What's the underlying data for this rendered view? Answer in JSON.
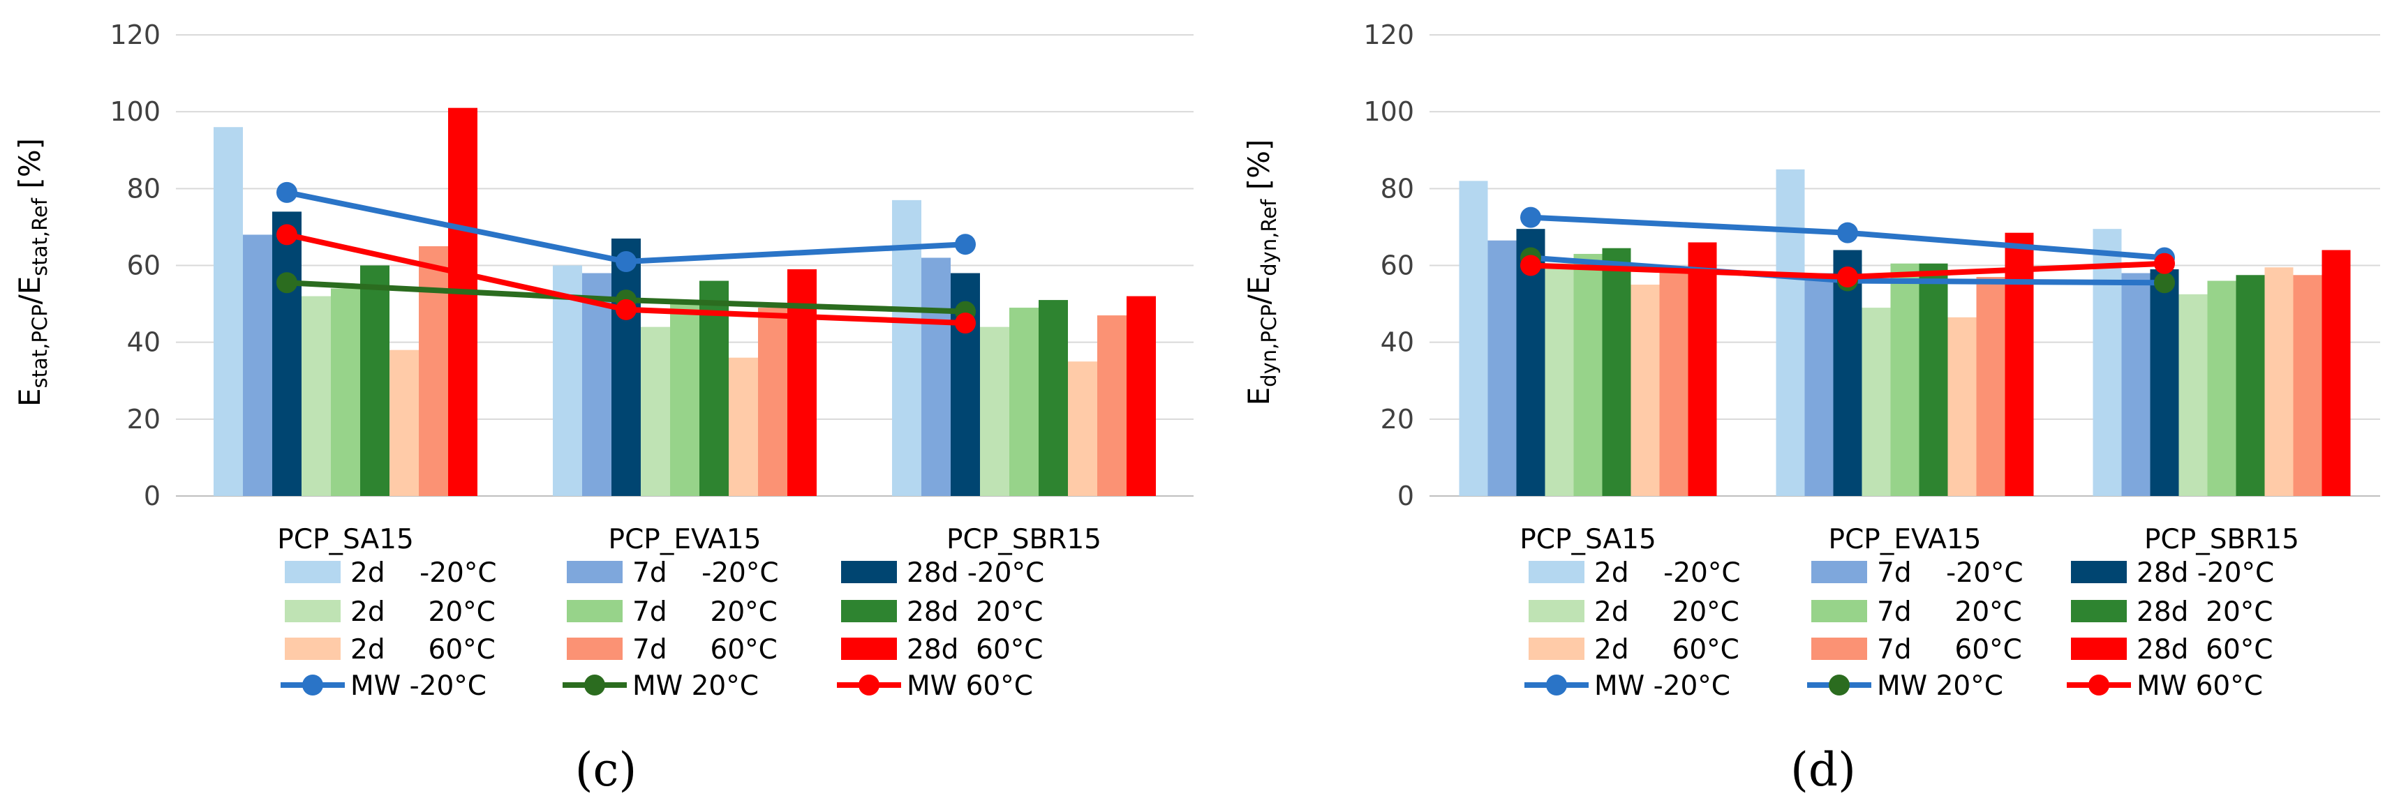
{
  "chart_data": [
    {
      "type": "bar",
      "panel_label": "(c)",
      "ylabel_main": "E",
      "ylabel_sub1": "stat,PCP",
      "ylabel_sep": "/E",
      "ylabel_sub2": "stat,Ref",
      "ylabel_unit": " [%]",
      "ylim": [
        0,
        120
      ],
      "yticks": [
        "0",
        "20",
        "40",
        "60",
        "80",
        "100",
        "120"
      ],
      "categories": [
        "PCP_SA15",
        "PCP_EVA15",
        "PCP_SBR15"
      ],
      "series": [
        {
          "name": "2d    -20°C",
          "color": "#b4d7f0",
          "values": [
            96,
            60,
            77
          ]
        },
        {
          "name": "7d    -20°C",
          "color": "#7ea7dc",
          "values": [
            68,
            58,
            62
          ]
        },
        {
          "name": "28d -20°C",
          "color": "#004571",
          "values": [
            74,
            67,
            58
          ]
        },
        {
          "name": "2d     20°C",
          "color": "#bfe3b4",
          "values": [
            52,
            44,
            44
          ]
        },
        {
          "name": "7d     20°C",
          "color": "#97d38a",
          "values": [
            54,
            50,
            49
          ]
        },
        {
          "name": "28d  20°C",
          "color": "#2e8430",
          "values": [
            60,
            56,
            51
          ]
        },
        {
          "name": "2d     60°C",
          "color": "#ffcba8",
          "values": [
            38,
            36,
            35
          ]
        },
        {
          "name": "7d     60°C",
          "color": "#fb9274",
          "values": [
            65,
            49,
            47
          ]
        },
        {
          "name": "28d  60°C",
          "color": "#ff0000",
          "values": [
            101,
            59,
            52
          ]
        }
      ],
      "lines": [
        {
          "name": "MW -20°C",
          "color": "#2a74c7",
          "values": [
            79,
            61,
            65.5
          ]
        },
        {
          "name": "MW 20°C",
          "color": "#2b6c1f",
          "values": [
            55.5,
            51,
            48
          ]
        },
        {
          "name": "MW 60°C",
          "color": "#ff0000",
          "values": [
            68,
            48.5,
            45
          ]
        }
      ]
    },
    {
      "type": "bar",
      "panel_label": "(d)",
      "ylabel_main": "E",
      "ylabel_sub1": "dyn,PCP",
      "ylabel_sep": "/E",
      "ylabel_sub2": "dyn,Ref",
      "ylabel_unit": " [%]",
      "ylim": [
        0,
        120
      ],
      "yticks": [
        "0",
        "20",
        "40",
        "60",
        "80",
        "100",
        "120"
      ],
      "categories": [
        "PCP_SA15",
        "PCP_EVA15",
        "PCP_SBR15"
      ],
      "series": [
        {
          "name": "2d    -20°C",
          "color": "#b4d7f0",
          "values": [
            82,
            85,
            69.5
          ]
        },
        {
          "name": "7d    -20°C",
          "color": "#7ea7dc",
          "values": [
            66.5,
            58,
            58
          ]
        },
        {
          "name": "28d -20°C",
          "color": "#004571",
          "values": [
            69.5,
            64,
            59
          ]
        },
        {
          "name": "2d     20°C",
          "color": "#bfe3b4",
          "values": [
            60.5,
            49,
            52.5
          ]
        },
        {
          "name": "7d     20°C",
          "color": "#97d38a",
          "values": [
            63,
            60.5,
            56
          ]
        },
        {
          "name": "28d  20°C",
          "color": "#2e8430",
          "values": [
            64.5,
            60.5,
            57.5
          ]
        },
        {
          "name": "2d     60°C",
          "color": "#ffcba8",
          "values": [
            55,
            46.5,
            59.5
          ]
        },
        {
          "name": "7d     60°C",
          "color": "#fb9274",
          "values": [
            59,
            57,
            57.5
          ]
        },
        {
          "name": "28d  60°C",
          "color": "#ff0000",
          "values": [
            66,
            68.5,
            64
          ]
        }
      ],
      "lines": [
        {
          "name": "MW -20°C",
          "color": "#2a74c7",
          "values": [
            72.5,
            68.5,
            62
          ]
        },
        {
          "name": "MW 20°C",
          "color": "#2a74c7",
          "marker_color": "#2b6c1f",
          "values": [
            62,
            56,
            55.5
          ]
        },
        {
          "name": "MW 60°C",
          "color": "#ff0000",
          "values": [
            60,
            57,
            60.5
          ]
        }
      ]
    }
  ]
}
